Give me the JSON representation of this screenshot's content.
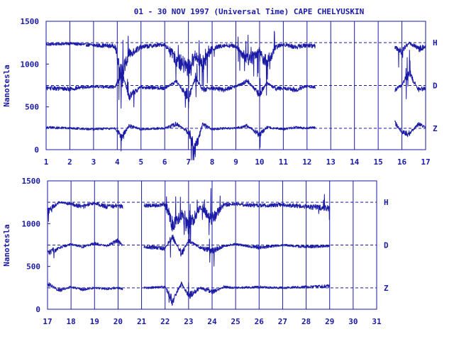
{
  "chart_data": {
    "type": "line",
    "title": "01 - 30 NOV 1997 (Universal Time) CAPE CHELYUSKIN",
    "ylabel": "Nanotesla",
    "colors": {
      "trace": "#1a1aa6",
      "frame": "#1a1aa6",
      "background": "#ffffff"
    },
    "baselines": [
      {
        "name": "H",
        "value": 1250
      },
      {
        "name": "D",
        "value": 750
      },
      {
        "name": "Z",
        "value": 250
      }
    ],
    "panels": [
      {
        "xlim": [
          1,
          17
        ],
        "ylim": [
          0,
          1500
        ],
        "xticks": [
          "1",
          "2",
          "3",
          "4",
          "5",
          "6",
          "7",
          "8",
          "9",
          "10",
          "11",
          "12",
          "13",
          "14",
          "15",
          "16",
          "17"
        ],
        "yticks": [
          "0",
          "500",
          "1000",
          "1500"
        ],
        "data_gaps": [
          [
            12.35,
            15.7
          ]
        ],
        "series": [
          {
            "name": "H",
            "x": [
              1,
              2,
              3,
              3.9,
              4.2,
              4.5,
              5,
              6,
              6.5,
              7,
              7.3,
              7.6,
              8,
              8.5,
              9,
              9.5,
              10,
              10.3,
              10.7,
              11,
              11.5,
              12,
              12.35,
              15.7,
              16,
              16.3,
              16.7,
              17
            ],
            "y": [
              1230,
              1240,
              1220,
              1210,
              850,
              1120,
              1200,
              1230,
              1050,
              950,
              1100,
              1000,
              1180,
              1220,
              1210,
              1050,
              1150,
              1000,
              1200,
              1230,
              1200,
              1220,
              1210,
              1200,
              1150,
              1250,
              1180,
              1200
            ]
          },
          {
            "name": "D",
            "x": [
              1,
              2,
              3,
              3.9,
              4.2,
              4.5,
              5,
              6,
              6.5,
              7,
              7.3,
              7.6,
              8,
              8.5,
              9,
              9.5,
              10,
              10.3,
              10.7,
              11,
              11.5,
              12,
              12.35,
              15.7,
              16,
              16.3,
              16.7,
              17
            ],
            "y": [
              720,
              710,
              740,
              730,
              900,
              620,
              730,
              720,
              800,
              600,
              850,
              700,
              720,
              700,
              740,
              800,
              650,
              780,
              710,
              720,
              700,
              740,
              730,
              700,
              750,
              900,
              700,
              720
            ]
          },
          {
            "name": "Z",
            "x": [
              1,
              2,
              3,
              3.9,
              4.2,
              4.5,
              5,
              6,
              6.5,
              7,
              7.3,
              7.6,
              8,
              8.5,
              9,
              9.5,
              10,
              10.3,
              10.7,
              11,
              11.5,
              12,
              12.35,
              15.7,
              16,
              16.3,
              16.7,
              17
            ],
            "y": [
              260,
              250,
              240,
              250,
              150,
              280,
              240,
              250,
              300,
              200,
              0,
              300,
              240,
              250,
              250,
              280,
              170,
              260,
              250,
              240,
              260,
              250,
              260,
              320,
              200,
              180,
              300,
              260
            ]
          }
        ]
      },
      {
        "xlim": [
          17,
          31
        ],
        "ylim": [
          0,
          1500
        ],
        "xticks": [
          "17",
          "18",
          "19",
          "20",
          "21",
          "22",
          "23",
          "24",
          "25",
          "26",
          "27",
          "28",
          "29",
          "30",
          "31"
        ],
        "yticks": [
          "0",
          "500",
          "1000",
          "1500"
        ],
        "data_gaps": [
          [
            20.2,
            21.1
          ],
          [
            29.0,
            31.0
          ]
        ],
        "series": [
          {
            "name": "H",
            "x": [
              17,
              17.5,
              18,
              18.5,
              19,
              19.5,
              20,
              20.2,
              21.1,
              22,
              22.3,
              22.7,
              23,
              23.5,
              24,
              24.5,
              25,
              26,
              27,
              28,
              29
            ],
            "y": [
              1150,
              1250,
              1230,
              1200,
              1240,
              1200,
              1210,
              1200,
              1210,
              1220,
              1000,
              1100,
              950,
              1200,
              1050,
              1220,
              1230,
              1210,
              1220,
              1200,
              1180
            ]
          },
          {
            "name": "D",
            "x": [
              17,
              17.5,
              18,
              18.5,
              19,
              19.5,
              20,
              20.2,
              21.1,
              22,
              22.3,
              22.7,
              23,
              23.5,
              24,
              24.5,
              25,
              26,
              27,
              28,
              29
            ],
            "y": [
              650,
              720,
              760,
              730,
              770,
              740,
              800,
              740,
              730,
              710,
              850,
              650,
              800,
              720,
              680,
              740,
              760,
              720,
              750,
              730,
              740
            ]
          },
          {
            "name": "Z",
            "x": [
              17,
              17.5,
              18,
              18.5,
              19,
              19.5,
              20,
              20.2,
              21.1,
              22,
              22.3,
              22.7,
              23,
              23.5,
              24,
              24.5,
              25,
              26,
              27,
              28,
              29
            ],
            "y": [
              300,
              220,
              260,
              230,
              250,
              240,
              250,
              240,
              250,
              260,
              100,
              300,
              150,
              250,
              200,
              260,
              250,
              260,
              250,
              260,
              270
            ]
          }
        ]
      }
    ]
  }
}
